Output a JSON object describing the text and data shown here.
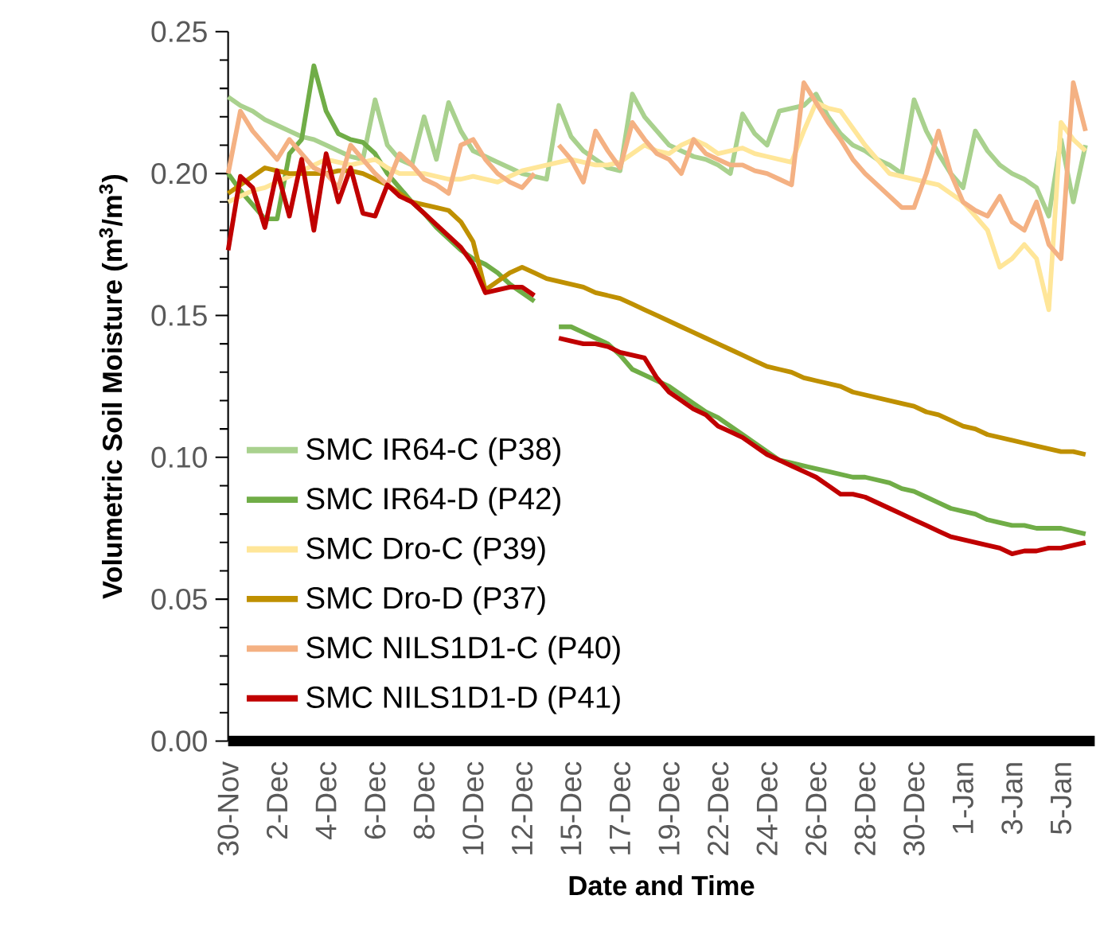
{
  "chart_data": {
    "type": "line",
    "xlabel": "Date and Time",
    "ylabel": "Volumetric Soil Moisture  (m$^{3}$/m$^{3}$)",
    "categories": [
      "30-Nov",
      null,
      null,
      null,
      "2-Dec",
      null,
      null,
      null,
      "4-Dec",
      null,
      null,
      null,
      "6-Dec",
      null,
      null,
      null,
      "8-Dec",
      null,
      null,
      null,
      "10-Dec",
      null,
      null,
      null,
      "12-Dec",
      null,
      null,
      null,
      "15-Dec",
      null,
      null,
      null,
      "17-Dec",
      null,
      null,
      null,
      "19-Dec",
      null,
      null,
      null,
      "22-Dec",
      null,
      null,
      null,
      "24-Dec",
      null,
      null,
      null,
      "26-Dec",
      null,
      null,
      null,
      "28-Dec",
      null,
      null,
      null,
      "30-Dec",
      null,
      null,
      null,
      "1-Jan",
      null,
      null,
      null,
      "3-Jan",
      null,
      null,
      null,
      "5-Jan",
      null,
      null
    ],
    "ylim": [
      0,
      0.25
    ],
    "yticks": [
      {
        "value": 0,
        "label": "0.00"
      },
      {
        "value": 0.01,
        "label": null
      },
      {
        "value": 0.02,
        "label": null
      },
      {
        "value": 0.03,
        "label": null
      },
      {
        "value": 0.04,
        "label": null
      },
      {
        "value": 0.05,
        "label": "0.05"
      },
      {
        "value": 0.06,
        "label": null
      },
      {
        "value": 0.07,
        "label": null
      },
      {
        "value": 0.08,
        "label": null
      },
      {
        "value": 0.09,
        "label": null
      },
      {
        "value": 0.1,
        "label": "0.10"
      },
      {
        "value": 0.11,
        "label": null
      },
      {
        "value": 0.12,
        "label": null
      },
      {
        "value": 0.13,
        "label": null
      },
      {
        "value": 0.14,
        "label": null
      },
      {
        "value": 0.15,
        "label": "0.15"
      },
      {
        "value": 0.16,
        "label": null
      },
      {
        "value": 0.17,
        "label": null
      },
      {
        "value": 0.18,
        "label": null
      },
      {
        "value": 0.19,
        "label": null
      },
      {
        "value": 0.2,
        "label": "0.20"
      },
      {
        "value": 0.21,
        "label": null
      },
      {
        "value": 0.22,
        "label": null
      },
      {
        "value": 0.23,
        "label": null
      },
      {
        "value": 0.24,
        "label": null
      },
      {
        "value": 0.25,
        "label": "0.25"
      }
    ],
    "grid": false,
    "legend": "bottom left",
    "marker": "none",
    "line_style": "solid",
    "series": [
      {
        "name": "SMC IR64-C (P38)",
        "color": "#a9d18e",
        "values": [
          0.227,
          0.224,
          0.222,
          0.219,
          0.217,
          0.215,
          0.213,
          0.212,
          0.21,
          0.208,
          0.206,
          0.205,
          0.226,
          0.21,
          0.205,
          0.203,
          0.22,
          0.205,
          0.225,
          0.215,
          0.208,
          0.206,
          0.204,
          0.202,
          0.2,
          0.199,
          0.198,
          0.224,
          0.213,
          0.208,
          0.205,
          0.202,
          0.201,
          0.228,
          0.22,
          0.215,
          0.21,
          0.208,
          0.206,
          0.205,
          0.203,
          0.2,
          0.221,
          0.214,
          0.21,
          0.222,
          0.223,
          0.224,
          0.228,
          0.22,
          0.214,
          0.21,
          0.208,
          0.205,
          0.203,
          0.2,
          0.226,
          0.215,
          0.207,
          0.2,
          0.195,
          0.215,
          0.208,
          0.203,
          0.2,
          0.198,
          0.195,
          0.185,
          0.212,
          0.19,
          0.21
        ]
      },
      {
        "name": "SMC IR64-D (P42)",
        "color": "#70ad47",
        "values": [
          0.2,
          0.194,
          0.189,
          0.184,
          0.184,
          0.207,
          0.212,
          0.238,
          0.222,
          0.214,
          0.212,
          0.211,
          0.207,
          0.2,
          0.195,
          0.19,
          0.186,
          0.181,
          0.177,
          0.173,
          0.17,
          0.168,
          0.165,
          0.161,
          0.158,
          0.155,
          null,
          0.146,
          0.146,
          0.144,
          0.142,
          0.14,
          0.136,
          0.131,
          0.129,
          0.127,
          0.125,
          0.122,
          0.119,
          0.116,
          0.114,
          0.111,
          0.108,
          0.105,
          0.102,
          0.099,
          0.098,
          0.097,
          0.096,
          0.095,
          0.094,
          0.093,
          0.093,
          0.092,
          0.091,
          0.089,
          0.088,
          0.086,
          0.084,
          0.082,
          0.081,
          0.08,
          0.078,
          0.077,
          0.076,
          0.076,
          0.075,
          0.075,
          0.075,
          0.074,
          0.073
        ]
      },
      {
        "name": "SMC Dro-C (P39)",
        "color": "#ffe699",
        "values": [
          0.19,
          0.192,
          0.194,
          0.195,
          0.197,
          0.199,
          0.201,
          0.203,
          0.205,
          0.204,
          0.203,
          0.204,
          0.205,
          0.202,
          0.2,
          0.2,
          0.2,
          0.199,
          0.198,
          0.198,
          0.199,
          0.198,
          0.197,
          0.199,
          0.201,
          0.202,
          0.203,
          0.204,
          0.205,
          0.204,
          0.203,
          0.203,
          0.204,
          0.207,
          0.21,
          0.208,
          0.207,
          0.21,
          0.212,
          0.21,
          0.207,
          0.208,
          0.209,
          0.207,
          0.206,
          0.205,
          0.204,
          0.215,
          0.225,
          0.223,
          0.222,
          0.216,
          0.21,
          0.205,
          0.2,
          0.199,
          0.198,
          0.197,
          0.196,
          0.193,
          0.19,
          0.185,
          0.18,
          0.167,
          0.17,
          0.175,
          0.17,
          0.152,
          0.218,
          0.212,
          0.208
        ]
      },
      {
        "name": "SMC Dro-D (P37)",
        "color": "#bf9000",
        "values": [
          0.193,
          0.196,
          0.199,
          0.202,
          0.201,
          0.2,
          0.2,
          0.2,
          0.2,
          0.201,
          0.201,
          0.2,
          0.198,
          0.196,
          0.193,
          0.19,
          0.189,
          0.188,
          0.187,
          0.183,
          0.176,
          0.159,
          0.162,
          0.165,
          0.167,
          0.165,
          0.163,
          0.162,
          0.161,
          0.16,
          0.158,
          0.157,
          0.156,
          0.154,
          0.152,
          0.15,
          0.148,
          0.146,
          0.144,
          0.142,
          0.14,
          0.138,
          0.136,
          0.134,
          0.132,
          0.131,
          0.13,
          0.128,
          0.127,
          0.126,
          0.125,
          0.123,
          0.122,
          0.121,
          0.12,
          0.119,
          0.118,
          0.116,
          0.115,
          0.113,
          0.111,
          0.11,
          0.108,
          0.107,
          0.106,
          0.105,
          0.104,
          0.103,
          0.102,
          0.102,
          0.101
        ]
      },
      {
        "name": "SMC NILS1D1-C (P40)",
        "color": "#f4b183",
        "values": [
          0.2,
          0.222,
          0.215,
          0.21,
          0.205,
          0.212,
          0.207,
          0.202,
          0.2,
          0.195,
          0.21,
          0.205,
          0.2,
          0.196,
          0.207,
          0.203,
          0.198,
          0.196,
          0.193,
          0.21,
          0.212,
          0.205,
          0.2,
          0.197,
          0.195,
          0.2,
          null,
          0.21,
          0.205,
          0.197,
          0.215,
          0.208,
          0.202,
          0.218,
          0.212,
          0.207,
          0.205,
          0.2,
          0.212,
          0.207,
          0.205,
          0.203,
          0.203,
          0.201,
          0.2,
          0.198,
          0.196,
          0.232,
          0.225,
          0.218,
          0.212,
          0.205,
          0.2,
          0.196,
          0.192,
          0.188,
          0.188,
          0.2,
          0.215,
          0.2,
          0.19,
          0.187,
          0.185,
          0.192,
          0.183,
          0.18,
          0.19,
          0.175,
          0.17,
          0.232,
          0.215
        ]
      },
      {
        "name": "SMC NILS1D1-D (P41)",
        "color": "#c00000",
        "values": [
          0.173,
          0.199,
          0.195,
          0.181,
          0.201,
          0.185,
          0.205,
          0.18,
          0.207,
          0.19,
          0.202,
          0.186,
          0.185,
          0.196,
          0.192,
          0.19,
          0.186,
          0.182,
          0.178,
          0.174,
          0.168,
          0.158,
          0.159,
          0.16,
          0.16,
          0.157,
          null,
          0.142,
          0.141,
          0.14,
          0.14,
          0.139,
          0.137,
          0.136,
          0.135,
          0.128,
          0.123,
          0.12,
          0.117,
          0.115,
          0.111,
          0.109,
          0.107,
          0.104,
          0.101,
          0.099,
          0.097,
          0.095,
          0.093,
          0.09,
          0.087,
          0.087,
          0.086,
          0.084,
          0.082,
          0.08,
          0.078,
          0.076,
          0.074,
          0.072,
          0.071,
          0.07,
          0.069,
          0.068,
          0.066,
          0.067,
          0.067,
          0.068,
          0.068,
          0.069,
          0.07
        ]
      }
    ]
  }
}
